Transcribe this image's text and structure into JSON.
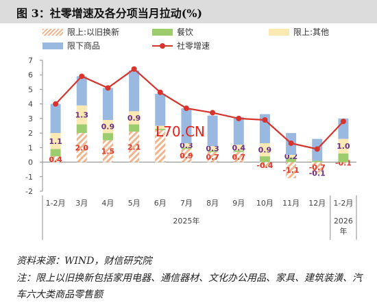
{
  "figure": {
    "title": "图 3：社零增速及各分项当月拉动(%)",
    "source": "资料来源：WIND，财信研究院",
    "note": "注：限上以旧换新包括家用电器、通信器材、文化办公用品、家具、建筑装潢、汽车六大类商品零售额",
    "watermark": "L70.CN"
  },
  "chart_data": {
    "type": "bar",
    "title": "社零增速及各分项当月拉动(%)",
    "categories": [
      "1-2月",
      "3月",
      "4月",
      "5月",
      "6月",
      "7月",
      "8月",
      "9月",
      "10月",
      "11月",
      "12月",
      "1-2月"
    ],
    "x_groups": [
      {
        "label": "2025年",
        "categories": [
          "1-2月",
          "3月",
          "4月",
          "5月",
          "6月",
          "7月",
          "8月",
          "9月",
          "10月",
          "11月",
          "12月"
        ]
      },
      {
        "label": "2026\n年",
        "categories": [
          "1-2月"
        ]
      }
    ],
    "ylim": [
      -2,
      7
    ],
    "yticks": [
      -2,
      -1,
      0,
      1,
      2,
      3,
      4,
      5,
      6,
      7
    ],
    "grid": false,
    "legend_position": "top",
    "series": [
      {
        "name": "限上:以旧换新",
        "kind": "bar",
        "color": "#f3b48c",
        "pattern": "hatch",
        "values": [
          0.4,
          2.0,
          1.5,
          2.1,
          2.2,
          0.9,
          0.7,
          0.7,
          -0.4,
          -1.1,
          -0.7,
          -0.1
        ],
        "labels": [
          "0.4",
          "2.0",
          "1.5",
          "2.1",
          "",
          "0.9",
          "0.7",
          "0.7",
          "-0.4",
          "-1.1",
          "-0.7",
          "-0.1"
        ]
      },
      {
        "name": "餐饮",
        "kind": "bar",
        "color": "#9ccc6e",
        "values": [
          0.5,
          0.6,
          0.5,
          0.5,
          0.1,
          0.1,
          0.1,
          0.1,
          0.4,
          0.3,
          0.1,
          0.6
        ],
        "labels": [
          "",
          "",
          "",
          "",
          "",
          "",
          "",
          "",
          "",
          "",
          "",
          ""
        ]
      },
      {
        "name": "限上:其他",
        "kind": "bar",
        "color": "#fbe9b3",
        "values": [
          1.1,
          1.3,
          0.9,
          0.9,
          0.2,
          0.3,
          0.3,
          0.4,
          0.9,
          0.2,
          -0.1,
          1.0
        ],
        "labels": [
          "1.1",
          "1.3",
          "0.9",
          "0.9",
          "",
          "0.3",
          "0.3",
          "0.4",
          "0.9",
          "0.2",
          "-0.1",
          "1.0"
        ]
      },
      {
        "name": "限下商品",
        "kind": "bar",
        "color": "#9ab9e0",
        "values": [
          2.0,
          2.0,
          2.2,
          2.8,
          2.2,
          2.4,
          2.1,
          1.9,
          2.0,
          1.5,
          1.5,
          1.4
        ],
        "labels": [
          "",
          "",
          "",
          "",
          "",
          "",
          "",
          "",
          "",
          "",
          "",
          ""
        ]
      },
      {
        "name": "社零增速",
        "kind": "line",
        "color": "#d8342e",
        "values": [
          4.0,
          5.9,
          5.1,
          6.4,
          4.8,
          3.7,
          3.4,
          3.0,
          2.9,
          1.3,
          0.9,
          2.8
        ]
      }
    ]
  }
}
